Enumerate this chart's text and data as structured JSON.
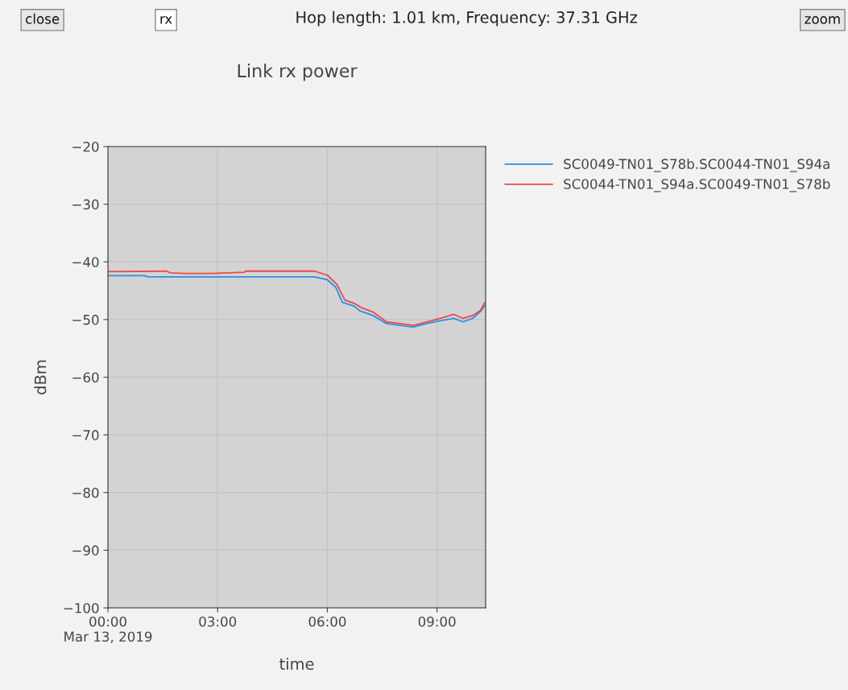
{
  "chart_data": {
    "type": "line",
    "title": "Link rx power",
    "subtitle": "Hop length: 1.01 km, Frequency: 37.31 GHz",
    "xlabel": "time",
    "ylabel": "dBm",
    "annotations": [
      "close",
      "rx",
      "zoom"
    ],
    "xlim": [
      0,
      10.33
    ],
    "xticks": [
      {
        "value": 0,
        "label": "00:00\nMar 13, 2019"
      },
      {
        "value": 3,
        "label": "03:00"
      },
      {
        "value": 6,
        "label": "06:00"
      },
      {
        "value": 9,
        "label": "09:00"
      }
    ],
    "ylim": [
      -100,
      -20
    ],
    "yticks": [
      -100,
      -90,
      -80,
      -70,
      -60,
      -50,
      -40,
      -30,
      -20
    ],
    "grid": true,
    "legend": "right",
    "marker": "none",
    "line_style": "solid",
    "series": [
      {
        "name": "SC0049-TN01_S78b.SC0044-TN01_S94a",
        "color": "#2b8fe8",
        "x": [
          0,
          1.01,
          1.09,
          5.64,
          6.0,
          6.23,
          6.41,
          6.74,
          6.89,
          7.25,
          7.62,
          7.99,
          8.35,
          8.72,
          9.09,
          9.46,
          9.71,
          9.97,
          10.19,
          10.3
        ],
        "values": [
          -42.4,
          -42.4,
          -42.6,
          -42.6,
          -43.1,
          -44.4,
          -47.0,
          -47.7,
          -48.5,
          -49.3,
          -50.7,
          -51.0,
          -51.3,
          -50.7,
          -50.2,
          -49.8,
          -50.4,
          -49.8,
          -48.6,
          -47.6
        ]
      },
      {
        "name": "SC0044-TN01_S94a.SC0049-TN01_S78b",
        "color": "#f04848",
        "x": [
          0,
          1.6,
          1.71,
          2.11,
          2.85,
          3.73,
          3.76,
          5.64,
          6.0,
          6.26,
          6.48,
          6.74,
          6.92,
          7.25,
          7.62,
          7.99,
          8.35,
          8.72,
          9.09,
          9.46,
          9.71,
          9.97,
          10.19,
          10.3
        ],
        "values": [
          -41.7,
          -41.6,
          -41.9,
          -42.0,
          -42.0,
          -41.8,
          -41.6,
          -41.6,
          -42.3,
          -43.9,
          -46.6,
          -47.2,
          -47.9,
          -48.7,
          -50.4,
          -50.7,
          -51.0,
          -50.4,
          -49.8,
          -49.1,
          -49.8,
          -49.3,
          -48.4,
          -47.1
        ]
      }
    ]
  }
}
